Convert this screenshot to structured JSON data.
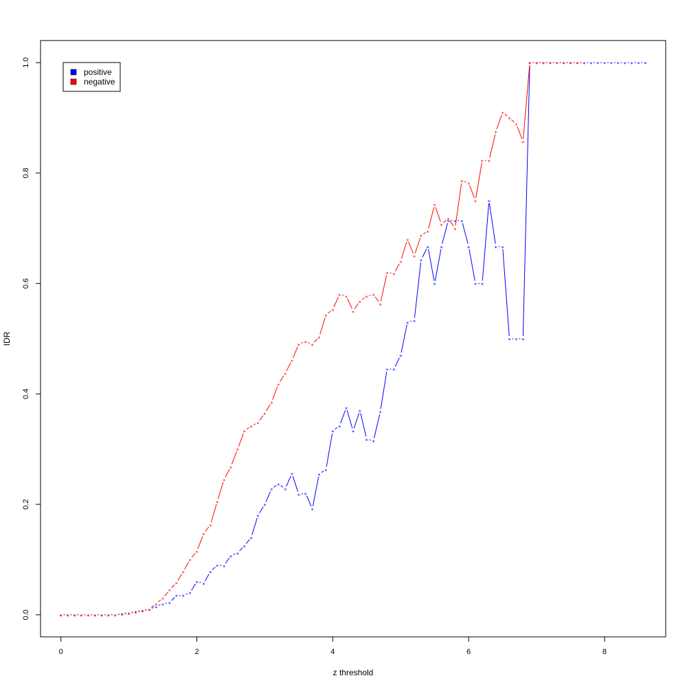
{
  "chart_data": {
    "type": "line",
    "title": "",
    "xlabel": "z threshold",
    "ylabel": "IDR",
    "xlim": [
      -0.3,
      8.9
    ],
    "ylim": [
      -0.04,
      1.04
    ],
    "xticks": [
      "0",
      "2",
      "4",
      "6",
      "8"
    ],
    "yticks": [
      "0.0",
      "0.2",
      "0.4",
      "0.6",
      "0.8",
      "1.0"
    ],
    "legend": {
      "position": "top-left",
      "entries": [
        "positive",
        "negative"
      ]
    },
    "marker": "*",
    "series": [
      {
        "name": "positive",
        "color": "#0000ff",
        "x": [
          0,
          0.1,
          0.2,
          0.3,
          0.4,
          0.5,
          0.6,
          0.7,
          0.8,
          0.9,
          1.0,
          1.1,
          1.2,
          1.3,
          1.4,
          1.5,
          1.6,
          1.7,
          1.8,
          1.9,
          2.0,
          2.1,
          2.2,
          2.3,
          2.4,
          2.5,
          2.6,
          2.7,
          2.8,
          2.9,
          3.0,
          3.1,
          3.2,
          3.3,
          3.4,
          3.5,
          3.6,
          3.7,
          3.8,
          3.9,
          4.0,
          4.1,
          4.2,
          4.3,
          4.4,
          4.5,
          4.6,
          4.7,
          4.8,
          4.9,
          5.0,
          5.1,
          5.2,
          5.3,
          5.4,
          5.5,
          5.6,
          5.7,
          5.8,
          5.9,
          6.0,
          6.1,
          6.2,
          6.3,
          6.4,
          6.5,
          6.6,
          6.7,
          6.8,
          6.9,
          7.0,
          7.1,
          7.2,
          7.3,
          7.4,
          7.5,
          7.6,
          7.7,
          7.8,
          7.9,
          8.0,
          8.1,
          8.2,
          8.3,
          8.4,
          8.5,
          8.6
        ],
        "y": [
          0,
          0,
          0,
          0,
          0,
          0,
          0,
          0,
          0,
          0.002,
          0.003,
          0.006,
          0.008,
          0.01,
          0.015,
          0.02,
          0.022,
          0.035,
          0.035,
          0.04,
          0.06,
          0.057,
          0.078,
          0.09,
          0.089,
          0.107,
          0.112,
          0.125,
          0.14,
          0.18,
          0.2,
          0.228,
          0.237,
          0.228,
          0.256,
          0.218,
          0.22,
          0.192,
          0.255,
          0.263,
          0.333,
          0.342,
          0.375,
          0.333,
          0.37,
          0.318,
          0.315,
          0.368,
          0.445,
          0.445,
          0.47,
          0.53,
          0.533,
          0.643,
          0.667,
          0.6,
          0.667,
          0.714,
          0.714,
          0.714,
          0.667,
          0.6,
          0.6,
          0.75,
          0.667,
          0.667,
          0.5,
          0.5,
          0.5,
          1.0,
          1,
          1,
          1,
          1,
          1,
          1,
          1,
          1,
          1,
          1,
          1,
          1,
          1,
          1,
          1,
          1,
          1
        ]
      },
      {
        "name": "negative",
        "color": "#ff0000",
        "x": [
          0,
          0.1,
          0.2,
          0.3,
          0.4,
          0.5,
          0.6,
          0.7,
          0.8,
          0.9,
          1.0,
          1.1,
          1.2,
          1.3,
          1.4,
          1.5,
          1.6,
          1.7,
          1.8,
          1.9,
          2.0,
          2.1,
          2.2,
          2.3,
          2.4,
          2.5,
          2.6,
          2.7,
          2.8,
          2.9,
          3.0,
          3.1,
          3.2,
          3.3,
          3.4,
          3.5,
          3.6,
          3.7,
          3.8,
          3.9,
          4.0,
          4.1,
          4.2,
          4.3,
          4.4,
          4.5,
          4.6,
          4.7,
          4.8,
          4.9,
          5.0,
          5.1,
          5.2,
          5.3,
          5.4,
          5.5,
          5.6,
          5.7,
          5.8,
          5.9,
          6.0,
          6.1,
          6.2,
          6.3,
          6.4,
          6.5,
          6.6,
          6.7,
          6.8,
          6.9,
          7.0,
          7.1,
          7.2,
          7.3,
          7.4,
          7.5,
          7.6,
          7.7
        ],
        "y": [
          0,
          0,
          0,
          0,
          0,
          0,
          0,
          0,
          0,
          0.001,
          0.003,
          0.005,
          0.007,
          0.01,
          0.02,
          0.03,
          0.045,
          0.058,
          0.078,
          0.1,
          0.115,
          0.147,
          0.163,
          0.205,
          0.245,
          0.268,
          0.3,
          0.333,
          0.342,
          0.348,
          0.365,
          0.385,
          0.418,
          0.437,
          0.461,
          0.49,
          0.495,
          0.49,
          0.503,
          0.543,
          0.553,
          0.58,
          0.577,
          0.55,
          0.568,
          0.577,
          0.58,
          0.563,
          0.62,
          0.618,
          0.64,
          0.68,
          0.65,
          0.687,
          0.695,
          0.743,
          0.707,
          0.718,
          0.7,
          0.786,
          0.782,
          0.75,
          0.823,
          0.823,
          0.875,
          0.91,
          0.9,
          0.889,
          0.857,
          1.0,
          1,
          1,
          1,
          1,
          1,
          1,
          1,
          1
        ]
      }
    ]
  }
}
